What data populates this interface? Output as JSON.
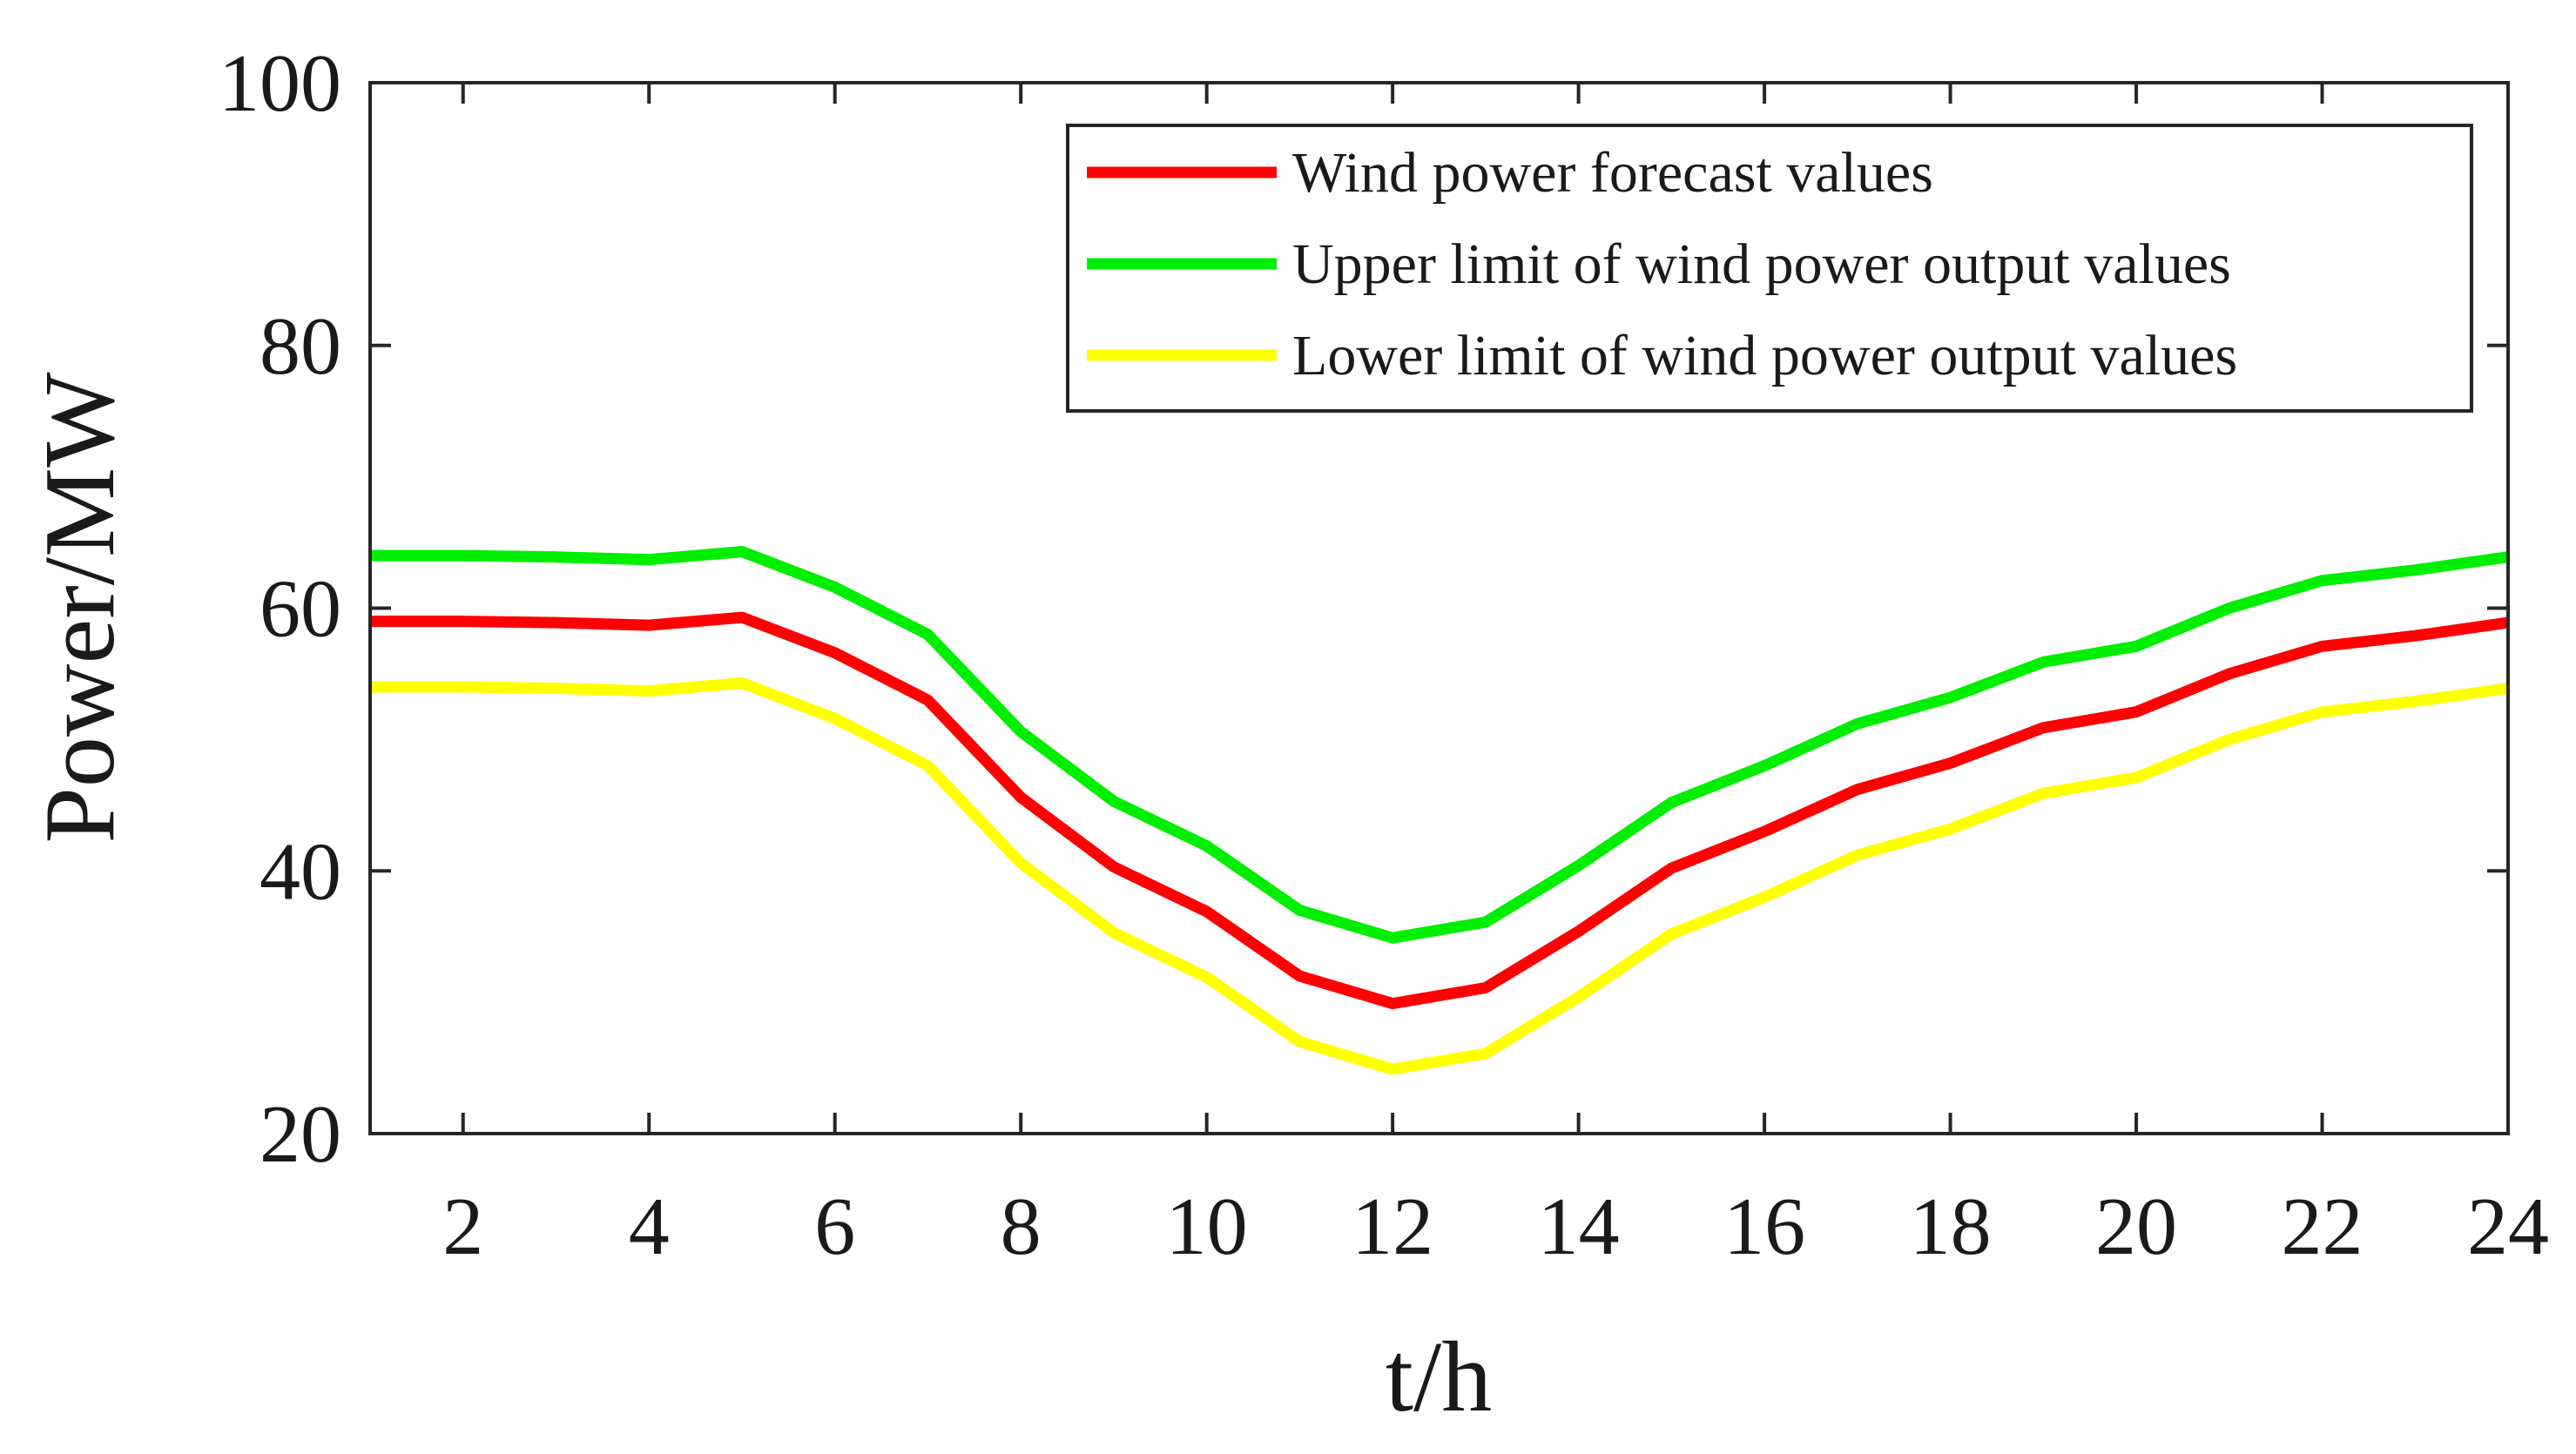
{
  "chart_data": {
    "type": "line",
    "title": "",
    "xlabel": "t/h",
    "ylabel": "Power/MW",
    "xlim": [
      1,
      24
    ],
    "ylim": [
      20,
      100
    ],
    "xticks": [
      2,
      4,
      6,
      8,
      10,
      12,
      14,
      16,
      18,
      20,
      22,
      24
    ],
    "yticks": [
      20,
      40,
      60,
      80,
      100
    ],
    "grid": false,
    "legend_position": "top-right",
    "x": [
      1,
      2,
      3,
      4,
      5,
      6,
      7,
      8,
      9,
      10,
      11,
      12,
      13,
      14,
      15,
      16,
      17,
      18,
      19,
      20,
      21,
      22,
      23,
      24
    ],
    "series": [
      {
        "name": "Wind power forecast values",
        "color": "#ff0000",
        "values": [
          59.0,
          59.0,
          58.9,
          58.7,
          59.3,
          56.6,
          53.0,
          45.6,
          40.3,
          36.9,
          32.0,
          29.9,
          31.1,
          35.4,
          40.2,
          43.0,
          46.2,
          48.2,
          50.9,
          52.1,
          55.0,
          57.1,
          57.9,
          58.9
        ]
      },
      {
        "name": "Upper limit of wind power output values",
        "color": "#00ee00",
        "values": [
          64.0,
          64.0,
          63.9,
          63.7,
          64.3,
          61.6,
          58.0,
          50.6,
          45.3,
          41.9,
          37.0,
          34.9,
          36.1,
          40.4,
          45.2,
          48.0,
          51.2,
          53.2,
          55.9,
          57.1,
          60.0,
          62.1,
          62.9,
          63.9
        ]
      },
      {
        "name": "Lower limit of wind power output values",
        "color": "#ffff00",
        "values": [
          54.0,
          54.0,
          53.9,
          53.7,
          54.3,
          51.6,
          48.0,
          40.6,
          35.3,
          31.9,
          27.0,
          24.9,
          26.1,
          30.4,
          35.2,
          38.0,
          41.2,
          43.2,
          45.9,
          47.1,
          50.0,
          52.1,
          52.9,
          53.9
        ]
      }
    ]
  }
}
